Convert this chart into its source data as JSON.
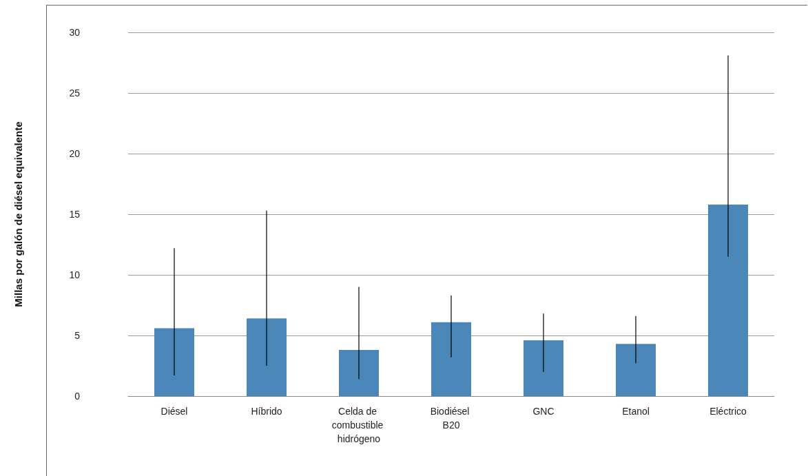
{
  "chart_data": {
    "type": "bar",
    "ylabel": "Millas por galón de diésel equivalente",
    "categories": [
      "Diésel",
      "Híbrido",
      "Celda de combustible hidrógeno",
      "Biodiésel B20",
      "GNC",
      "Etanol",
      "Eléctrico"
    ],
    "values": [
      5.6,
      6.4,
      3.8,
      6.1,
      4.6,
      4.3,
      15.8
    ],
    "errors": [
      [
        1.7,
        12.2
      ],
      [
        2.5,
        15.3
      ],
      [
        1.4,
        9.0
      ],
      [
        3.2,
        8.3
      ],
      [
        2.0,
        6.8
      ],
      [
        2.7,
        6.6
      ],
      [
        11.5,
        28.1
      ]
    ],
    "color": "#4a86b8",
    "ylim": [
      0,
      30
    ],
    "yticks": [
      0,
      5,
      10,
      15,
      20,
      25,
      30
    ],
    "grid": "y"
  }
}
